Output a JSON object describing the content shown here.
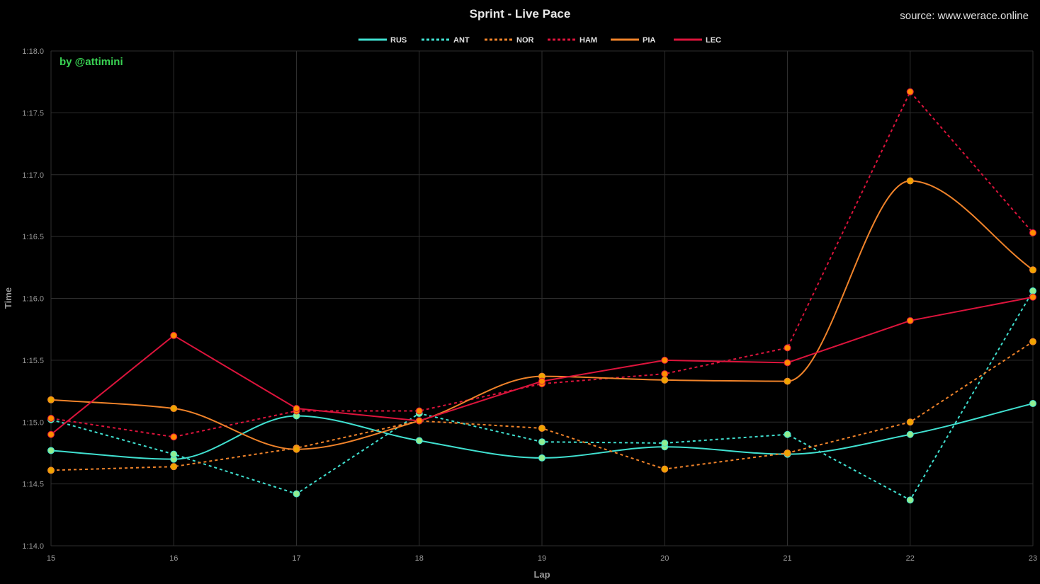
{
  "title": "Sprint - Live Pace",
  "source": "source: www.werace.online",
  "watermark": "by @attimini",
  "chart_data": {
    "type": "line",
    "title": "Sprint - Live Pace",
    "xlabel": "Lap",
    "ylabel": "Time",
    "x": [
      15,
      16,
      17,
      18,
      19,
      20,
      21,
      22,
      23
    ],
    "x_tick_labels": [
      "15",
      "16",
      "17",
      "18",
      "19",
      "20",
      "21",
      "22",
      "23"
    ],
    "ylim": [
      74.0,
      78.0
    ],
    "y_ticks": [
      74.0,
      74.5,
      75.0,
      75.5,
      76.0,
      76.5,
      77.0,
      77.5,
      78.0
    ],
    "y_tick_labels": [
      "1:14.0",
      "1:14.5",
      "1:15.0",
      "1:15.5",
      "1:16.0",
      "1:16.5",
      "1:17.0",
      "1:17.5",
      "1:18.0"
    ],
    "y_unit": "seconds",
    "grid": true,
    "legend_position": "top-center",
    "series": [
      {
        "name": "RUS",
        "color": "#40e0d0",
        "point_color": "#90ee90",
        "dashed": false,
        "smooth": true,
        "values": [
          74.77,
          74.7,
          75.05,
          74.85,
          74.71,
          74.8,
          74.74,
          74.9,
          75.15
        ]
      },
      {
        "name": "ANT",
        "color": "#40e0d0",
        "point_color": "#90ee90",
        "dashed": true,
        "smooth": false,
        "values": [
          75.02,
          74.74,
          74.42,
          75.07,
          74.84,
          74.83,
          74.9,
          74.37,
          76.06
        ]
      },
      {
        "name": "NOR",
        "color": "#f0832a",
        "point_color": "#f0a500",
        "dashed": true,
        "smooth": false,
        "values": [
          74.61,
          74.64,
          74.79,
          75.01,
          74.95,
          74.62,
          74.75,
          75.0,
          75.65
        ]
      },
      {
        "name": "HAM",
        "color": "#dc143c",
        "point_color": "#ff8c00",
        "dashed": true,
        "smooth": false,
        "values": [
          75.03,
          74.88,
          75.09,
          75.09,
          75.31,
          75.39,
          75.6,
          77.67,
          76.53
        ]
      },
      {
        "name": "PIA",
        "color": "#f0832a",
        "point_color": "#f0a500",
        "dashed": false,
        "smooth": true,
        "values": [
          75.18,
          75.11,
          74.78,
          75.01,
          75.37,
          75.34,
          75.33,
          76.95,
          76.23
        ]
      },
      {
        "name": "LEC",
        "color": "#dc143c",
        "point_color": "#ff8c00",
        "dashed": false,
        "smooth": false,
        "values": [
          74.9,
          75.7,
          75.11,
          75.01,
          75.33,
          75.5,
          75.48,
          75.82,
          76.01
        ]
      }
    ]
  }
}
